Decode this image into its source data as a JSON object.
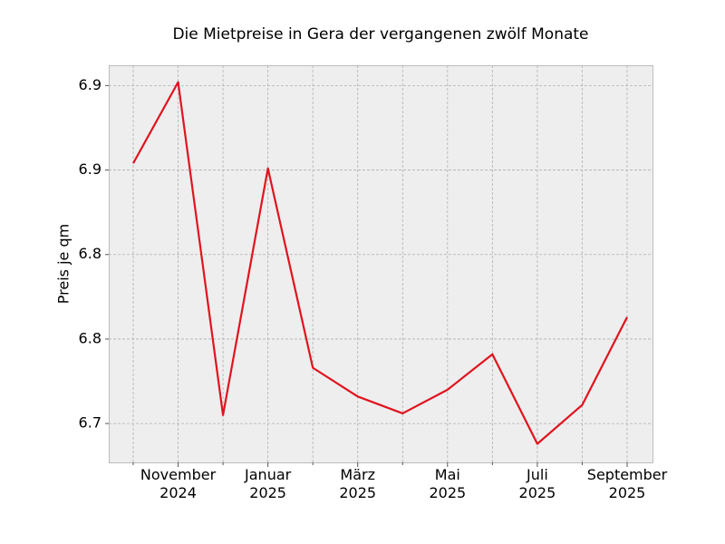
{
  "chart_data": {
    "type": "line",
    "title": "Die Mietpreise in Gera der vergangenen zwölf Monate",
    "y_label": "Preis je qm",
    "categories": [
      null,
      "November 2024",
      null,
      "Januar 2025",
      null,
      "März 2025",
      null,
      "Mai 2025",
      null,
      "Juli 2025",
      null,
      "September 2025"
    ],
    "series": [
      {
        "name": "Preis je qm",
        "color": "#e0141e",
        "values": [
          6.854,
          6.902,
          6.705,
          6.851,
          6.733,
          6.716,
          6.706,
          6.72,
          6.741,
          6.688,
          6.711,
          6.763
        ]
      }
    ],
    "ylim": [
      6.677,
      6.912
    ],
    "yticks": [
      6.7,
      {
        "value": 6.75,
        "label": "6.8"
      },
      6.8,
      {
        "value": 6.85,
        "label": "6.9"
      },
      6.9
    ],
    "grid": true
  }
}
